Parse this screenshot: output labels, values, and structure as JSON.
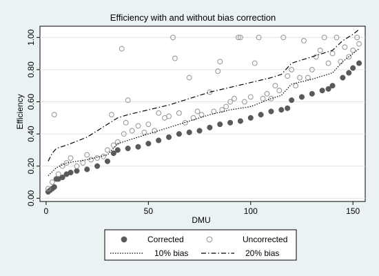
{
  "chart_data": {
    "type": "scatter",
    "title": "Efficiency with and without bias correction",
    "xlabel": "DMU",
    "ylabel": "Efficiency",
    "xlim": [
      -3,
      156
    ],
    "ylim": [
      -0.02,
      1.07
    ],
    "xticks": [
      0,
      50,
      100,
      150
    ],
    "yticks": [
      0.0,
      0.2,
      0.4,
      0.6,
      0.8,
      1.0
    ],
    "ytick_labels": [
      "0.00",
      "0.20",
      "0.40",
      "0.60",
      "0.80",
      "1.00"
    ],
    "grid": "horizontal",
    "legend_position": "bottom",
    "series": [
      {
        "name": "Corrected",
        "style": "filled-circle",
        "color": "#595959",
        "x": [
          1,
          2,
          3,
          4,
          5,
          6,
          8,
          10,
          12,
          15,
          20,
          25,
          30,
          33,
          35,
          40,
          45,
          50,
          55,
          60,
          65,
          70,
          75,
          80,
          85,
          90,
          95,
          100,
          105,
          110,
          115,
          118,
          120,
          125,
          130,
          135,
          138,
          140,
          145,
          148,
          150,
          153
        ],
        "y": [
          0.04,
          0.05,
          0.06,
          0.07,
          0.12,
          0.12,
          0.13,
          0.15,
          0.16,
          0.17,
          0.18,
          0.2,
          0.23,
          0.28,
          0.3,
          0.31,
          0.32,
          0.34,
          0.36,
          0.38,
          0.4,
          0.41,
          0.42,
          0.44,
          0.46,
          0.47,
          0.48,
          0.5,
          0.52,
          0.54,
          0.55,
          0.56,
          0.61,
          0.63,
          0.65,
          0.67,
          0.68,
          0.7,
          0.75,
          0.78,
          0.81,
          0.84
        ]
      },
      {
        "name": "Uncorrected",
        "style": "hollow-circle",
        "color": "#9a9a9a",
        "x": [
          1,
          3,
          4,
          6,
          8,
          10,
          12,
          15,
          18,
          20,
          22,
          25,
          28,
          30,
          32,
          33,
          35,
          37,
          38,
          39,
          40,
          42,
          45,
          48,
          50,
          53,
          55,
          58,
          60,
          62,
          63,
          65,
          68,
          70,
          72,
          74,
          76,
          80,
          82,
          84,
          85,
          86,
          88,
          90,
          92,
          94,
          95,
          97,
          100,
          102,
          104,
          106,
          108,
          110,
          112,
          114,
          116,
          118,
          120,
          122,
          124,
          126,
          128,
          130,
          132,
          134,
          136,
          138,
          140,
          142,
          144,
          146,
          148,
          150,
          152,
          153
        ],
        "y": [
          0.06,
          0.1,
          0.52,
          0.15,
          0.2,
          0.22,
          0.25,
          0.2,
          0.22,
          0.27,
          0.24,
          0.25,
          0.26,
          0.3,
          0.52,
          0.33,
          0.35,
          0.93,
          0.4,
          0.47,
          0.61,
          0.42,
          0.45,
          0.41,
          0.46,
          0.42,
          0.53,
          0.5,
          0.51,
          1.0,
          0.87,
          0.53,
          0.47,
          0.75,
          0.5,
          0.54,
          0.52,
          0.66,
          0.54,
          0.79,
          0.85,
          0.55,
          0.57,
          0.6,
          0.62,
          1.0,
          1.0,
          0.6,
          0.63,
          0.84,
          1.0,
          0.62,
          0.65,
          0.62,
          0.7,
          0.67,
          1.0,
          0.76,
          0.8,
          0.7,
          0.75,
          0.98,
          0.75,
          0.8,
          0.88,
          0.92,
          1.0,
          0.84,
          0.9,
          1.0,
          0.85,
          0.94,
          0.88,
          0.92,
          1.0,
          0.96
        ]
      },
      {
        "name": "10% bias",
        "style": "dotted-line",
        "color": "#000000",
        "x": [
          1,
          5,
          10,
          20,
          30,
          35,
          40,
          50,
          60,
          70,
          80,
          90,
          100,
          110,
          115,
          120,
          130,
          140,
          145,
          150,
          153
        ],
        "y": [
          0.14,
          0.19,
          0.22,
          0.24,
          0.27,
          0.34,
          0.36,
          0.4,
          0.44,
          0.48,
          0.52,
          0.55,
          0.57,
          0.62,
          0.64,
          0.71,
          0.74,
          0.78,
          0.85,
          0.9,
          0.93
        ]
      },
      {
        "name": "20% bias",
        "style": "dash-dot-line",
        "color": "#000000",
        "x": [
          1,
          3,
          5,
          10,
          20,
          30,
          35,
          40,
          50,
          60,
          70,
          80,
          90,
          100,
          110,
          115,
          120,
          130,
          140,
          145,
          150,
          153
        ],
        "y": [
          0.23,
          0.28,
          0.31,
          0.33,
          0.38,
          0.46,
          0.5,
          0.52,
          0.55,
          0.58,
          0.62,
          0.66,
          0.69,
          0.72,
          0.75,
          0.77,
          0.84,
          0.88,
          0.92,
          0.98,
          1.02,
          1.05
        ]
      }
    ]
  },
  "colors": {
    "figure_background": "#eaf2f3",
    "plot_background": "#ffffff",
    "grid": "#e3e3e3",
    "corrected_marker": "#595959",
    "uncorrected_marker": "#9a9a9a"
  }
}
